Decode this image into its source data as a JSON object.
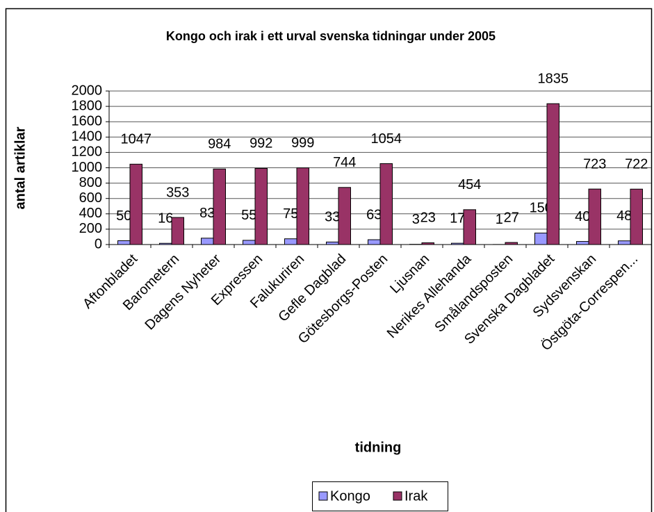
{
  "chart_data": {
    "type": "bar",
    "title": "Kongo och irak i ett urval svenska tidningar under 2005",
    "x_label": "tidning",
    "y_label": "antal artiklar",
    "categories": [
      "Aftonbladet",
      "Barometern",
      "Dagens Nyheter",
      "Expressen",
      "Falukuriren",
      "Gefle Dagblad",
      "Götesborgs-Posten",
      "Ljusnan",
      "Nerikes Allehanda",
      "Smålandsposten",
      "Svenska Dagbladet",
      "Sydsvenskan",
      "Östgöta-Correspen..."
    ],
    "series": [
      {
        "name": "Kongo",
        "color": "#9999ff",
        "values": [
          50,
          16,
          83,
          55,
          75,
          33,
          63,
          3,
          17,
          1,
          150,
          40,
          48
        ]
      },
      {
        "name": "Irak",
        "color": "#993366",
        "values": [
          1047,
          353,
          984,
          992,
          999,
          744,
          1054,
          23,
          454,
          27,
          1835,
          723,
          722
        ]
      }
    ],
    "ylim": [
      0,
      2000
    ],
    "yticks": [
      0,
      200,
      400,
      600,
      800,
      1000,
      1200,
      1400,
      1600,
      1800,
      2000
    ],
    "grid": true,
    "legend": "bottom"
  }
}
